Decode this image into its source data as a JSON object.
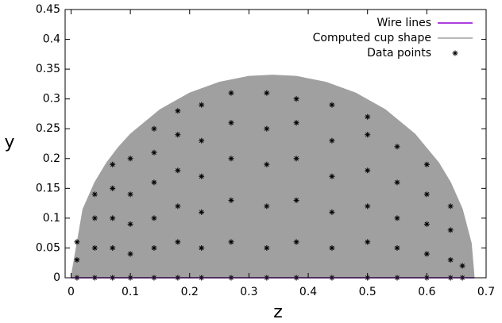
{
  "chart_data": {
    "type": "line",
    "xlabel": "z",
    "ylabel": "y",
    "xlim": [
      -0.01,
      0.7
    ],
    "ylim": [
      0,
      0.45
    ],
    "xticks": [
      0,
      0.1,
      0.2,
      0.3,
      0.4,
      0.5,
      0.6,
      0.7
    ],
    "yticks": [
      0,
      0.05,
      0.1,
      0.15,
      0.2,
      0.25,
      0.3,
      0.35,
      0.4,
      0.45
    ],
    "legend": "top-right",
    "series": [
      {
        "name": "Wire lines",
        "color": "#9400d3",
        "style": "line",
        "x": [
          0,
          0.68
        ],
        "values": [
          0,
          0
        ]
      },
      {
        "name": "Computed cup shape",
        "color": "#a0a0a0",
        "style": "area",
        "x": [
          0,
          0.02,
          0.04,
          0.06,
          0.08,
          0.1,
          0.15,
          0.2,
          0.25,
          0.3,
          0.34,
          0.38,
          0.43,
          0.48,
          0.53,
          0.58,
          0.62,
          0.64,
          0.66,
          0.675,
          0.68
        ],
        "values": [
          0,
          0.115,
          0.16,
          0.193,
          0.219,
          0.241,
          0.282,
          0.31,
          0.328,
          0.338,
          0.34,
          0.338,
          0.328,
          0.31,
          0.282,
          0.241,
          0.193,
          0.16,
          0.115,
          0.058,
          0
        ]
      },
      {
        "name": "Data points",
        "color": "#000000",
        "style": "points",
        "x": [
          0.01,
          0.01,
          0.01,
          0.04,
          0.04,
          0.04,
          0.04,
          0.07,
          0.07,
          0.07,
          0.07,
          0.07,
          0.1,
          0.1,
          0.1,
          0.1,
          0.1,
          0.14,
          0.14,
          0.14,
          0.14,
          0.14,
          0.14,
          0.18,
          0.18,
          0.18,
          0.18,
          0.18,
          0.18,
          0.22,
          0.22,
          0.22,
          0.22,
          0.22,
          0.22,
          0.27,
          0.27,
          0.27,
          0.27,
          0.27,
          0.27,
          0.33,
          0.33,
          0.33,
          0.33,
          0.33,
          0.33,
          0.38,
          0.38,
          0.38,
          0.38,
          0.38,
          0.38,
          0.44,
          0.44,
          0.44,
          0.44,
          0.44,
          0.44,
          0.5,
          0.5,
          0.5,
          0.5,
          0.5,
          0.5,
          0.55,
          0.55,
          0.55,
          0.55,
          0.55,
          0.6,
          0.6,
          0.6,
          0.6,
          0.6,
          0.64,
          0.64,
          0.64,
          0.64,
          0.66,
          0.66
        ],
        "values": [
          0,
          0.03,
          0.06,
          0,
          0.05,
          0.1,
          0.14,
          0,
          0.05,
          0.1,
          0.15,
          0.19,
          0,
          0.04,
          0.09,
          0.14,
          0.2,
          0,
          0.05,
          0.1,
          0.16,
          0.21,
          0.25,
          0,
          0.06,
          0.12,
          0.18,
          0.24,
          0.28,
          0,
          0.05,
          0.11,
          0.17,
          0.23,
          0.29,
          0,
          0.06,
          0.13,
          0.2,
          0.26,
          0.31,
          0,
          0.05,
          0.12,
          0.19,
          0.25,
          0.31,
          0,
          0.06,
          0.13,
          0.2,
          0.26,
          0.3,
          0,
          0.05,
          0.11,
          0.17,
          0.23,
          0.29,
          0,
          0.06,
          0.12,
          0.18,
          0.24,
          0.27,
          0,
          0.05,
          0.1,
          0.16,
          0.22,
          0,
          0.04,
          0.09,
          0.14,
          0.19,
          0,
          0.03,
          0.08,
          0.12,
          0,
          0.02
        ]
      }
    ]
  }
}
